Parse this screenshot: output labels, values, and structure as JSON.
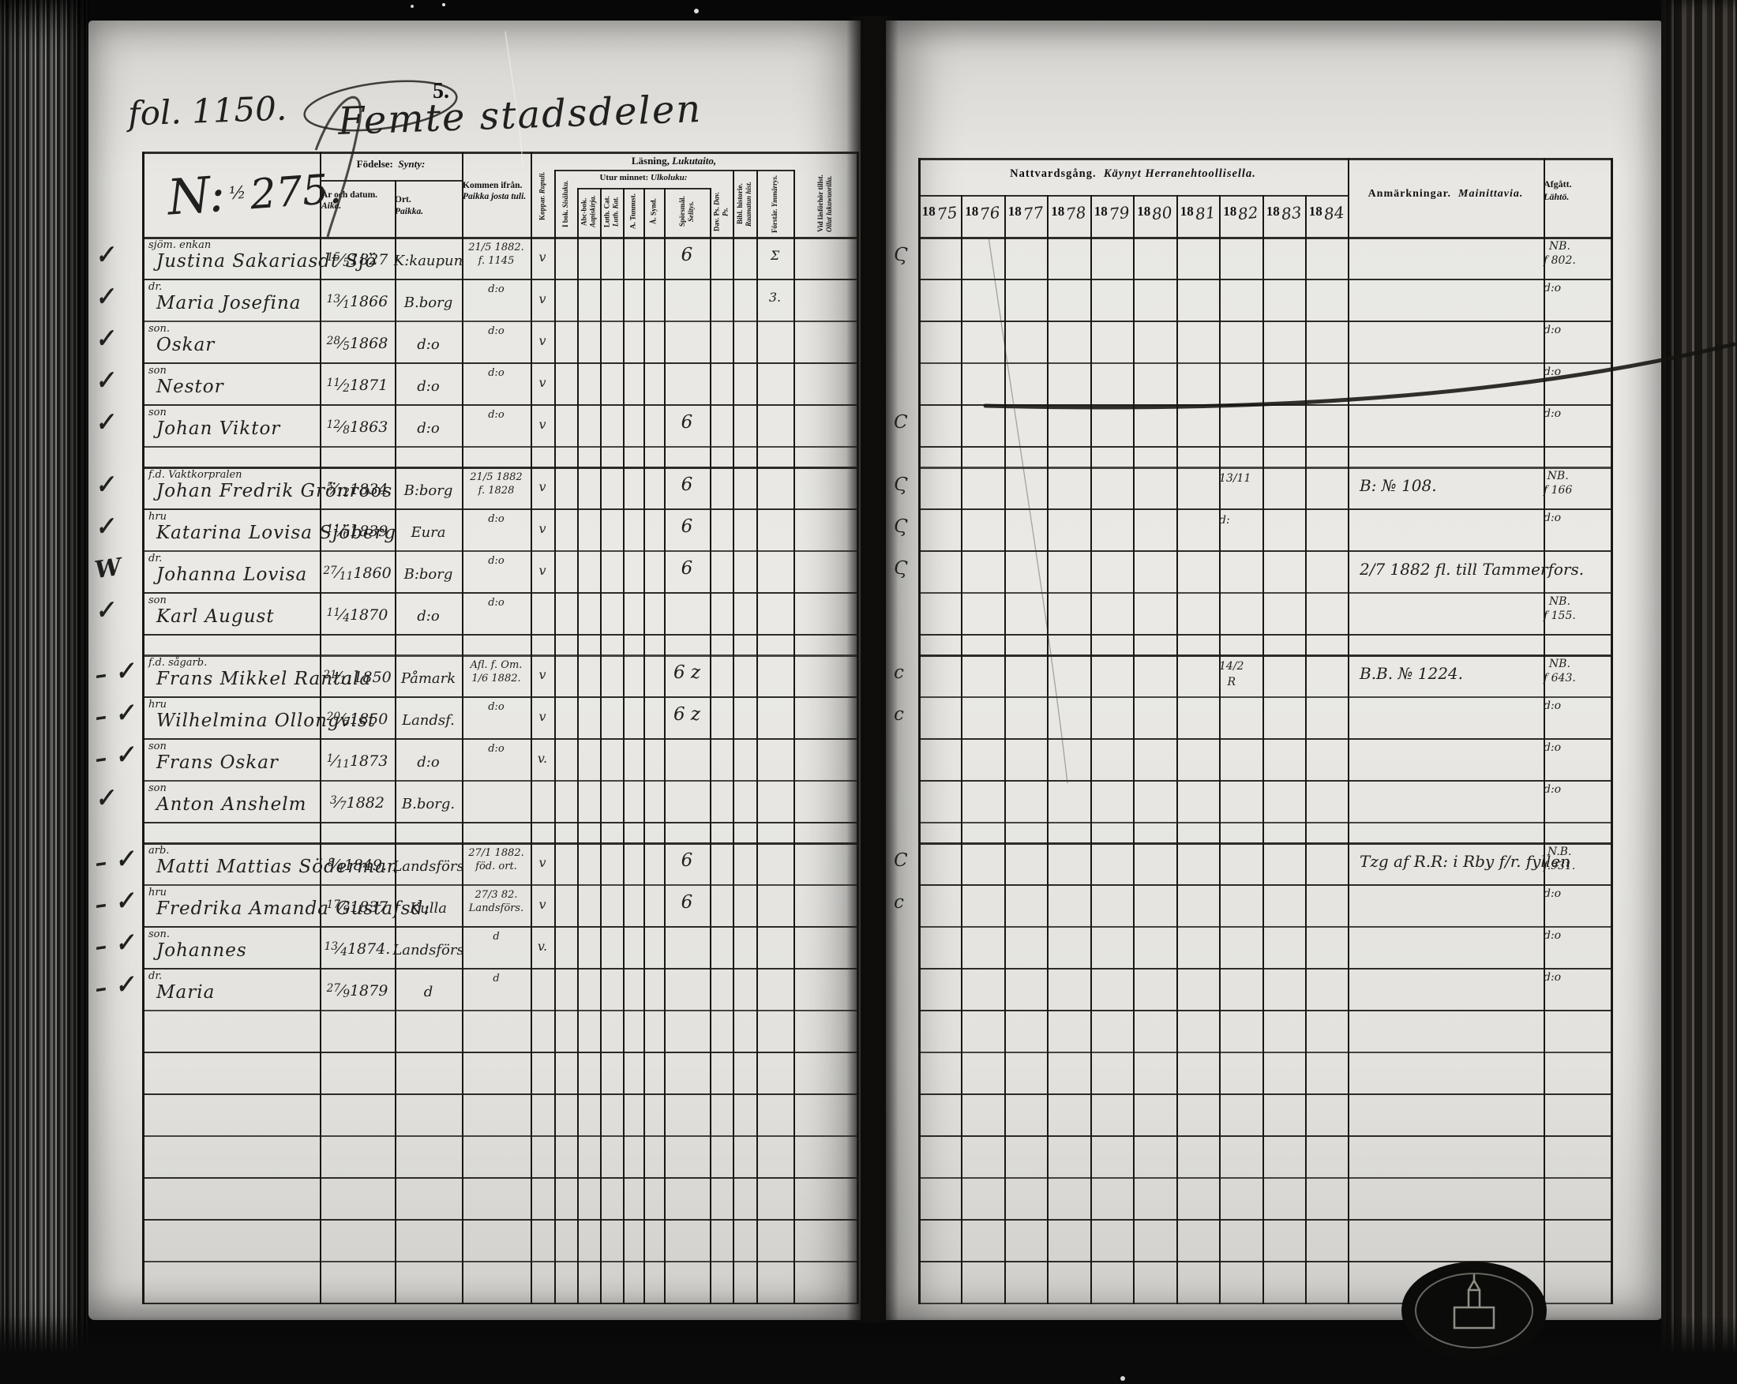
{
  "page": {
    "folio_label": "fol. 1150.",
    "district_title": "Femte stadsdelen",
    "page_number": "5.",
    "household_number_prefix": "N:",
    "household_number_fraction": "½",
    "household_number": "275."
  },
  "left_table": {
    "header": {
      "birth_group_sv": "Födelse:",
      "birth_group_fi": "Synty:",
      "birth_date_sv": "År och datum.",
      "birth_date_fi": "Aika.",
      "birth_place_sv": "Ort.",
      "birth_place_fi": "Paikka.",
      "came_from_sv": "Kommen ifrån.",
      "came_from_fi": "Paikka josta tuli.",
      "smallpox_sv": "Koppar.",
      "smallpox_fi": "Rupuli.",
      "reading_group_sv": "Läsning,",
      "reading_group_fi": "Lukutaito,",
      "memory_group_sv": "Utur minnet:",
      "memory_group_fi": "Ulkoluku:",
      "reading_cols": [
        {
          "sv": "I bok.",
          "fi": "Sisäluku."
        },
        {
          "sv": "Abc-bok.",
          "fi": "Aapiskirja."
        },
        {
          "sv": "Luth. Cat.",
          "fi": "Luth. Kat."
        },
        {
          "sv": "A. Tunnust.",
          "fi": ""
        },
        {
          "sv": "Å. Synd.",
          "fi": ""
        },
        {
          "sv": "Spörsmål.",
          "fi": "Selitys."
        },
        {
          "sv": "Dav. Ps.",
          "fi": "Dav. Ps."
        },
        {
          "sv": "Bibl. historie.",
          "fi": "Raamatun hist."
        },
        {
          "sv": "Förstår.",
          "fi": "Ymmärrys."
        },
        {
          "sv": "Vid läsförhör tillst.",
          "fi": "Ollut lukuwuorilla."
        }
      ]
    }
  },
  "right_table": {
    "header": {
      "communion_sv": "Nattvardsgång.",
      "communion_fi": "Käynyt Herranehtoollisella.",
      "year_prefix": "18",
      "year_suffixes": [
        "75",
        "76",
        "77",
        "78",
        "79",
        "80",
        "81",
        "82",
        "83",
        "84"
      ],
      "notes_sv": "Anmärkningar.",
      "notes_fi": "Mainittavia.",
      "departed_sv": "Afgått.",
      "departed_fi": "Lähtö."
    }
  },
  "rows": [
    {
      "type": "entry",
      "check": "✓",
      "occupation": "sjöm. enkan",
      "name": "Justina Sakariasdt Sjö",
      "birth_date": "15/5 1827",
      "birth_place": "K:kaupun",
      "came_from": "21/5 1882.\nf. 1145",
      "smallpox": "v",
      "sporsmal": "6",
      "forstar": "Σ",
      "comm_margin": "Ϛ",
      "departed": "NB.\nf 802."
    },
    {
      "type": "entry",
      "check": "✓",
      "occupation": "dr.",
      "name": "Maria Josefina",
      "birth_date": "13/1 1866",
      "birth_place": "B.borg",
      "came_from": "d:o",
      "smallpox": "v",
      "forstar": "3.",
      "departed": "d:o"
    },
    {
      "type": "entry",
      "check": "✓",
      "occupation": "son.",
      "name": "Oskar",
      "birth_date": "28/5 1868",
      "birth_place": "d:o",
      "came_from": "d:o",
      "smallpox": "v",
      "departed": "d:o"
    },
    {
      "type": "entry",
      "check": "✓",
      "occupation": "son",
      "name": "Nestor",
      "birth_date": "11/2 1871",
      "birth_place": "d:o",
      "came_from": "d:o",
      "smallpox": "v",
      "departed": "d:o"
    },
    {
      "type": "entry",
      "check": "✓",
      "occupation": "son",
      "name": "Johan Viktor",
      "birth_date": "12/8 1863",
      "birth_place": "d:o",
      "came_from": "d:o",
      "smallpox": "v",
      "sporsmal": "6",
      "comm_margin": "C",
      "departed": "d:o"
    },
    {
      "type": "gap"
    },
    {
      "type": "entry",
      "check": "✓",
      "occupation": "f.d. Vaktkorpralen",
      "name": "Johan Fredrik Grönroos",
      "birth_date": "5/12 1834",
      "birth_place": "B:borg",
      "came_from": "21/5 1882\nf. 1828",
      "smallpox": "v",
      "sporsmal": "6",
      "comm_margin": "Ϛ",
      "y1882": [
        "13/11"
      ],
      "note": "B: № 108.",
      "departed": "NB.\nf 166"
    },
    {
      "type": "entry",
      "check": "✓",
      "occupation": "hru",
      "name": "Katarina Lovisa Sjöberg",
      "birth_date": "11/6 1839",
      "birth_place": "Eura",
      "came_from": "d:o",
      "smallpox": "v",
      "sporsmal": "6",
      "comm_margin": "Ϛ",
      "y1882": [
        "d:"
      ],
      "departed": "d:o"
    },
    {
      "type": "entry",
      "check": "W",
      "occupation": "dr.",
      "name": "Johanna Lovisa",
      "birth_date": "27/11 1860",
      "birth_place": "B:borg",
      "came_from": "d:o",
      "smallpox": "v",
      "sporsmal": "6",
      "comm_margin": "Ϛ",
      "note": "2/7 1882 fl. till Tammerfors."
    },
    {
      "type": "entry",
      "check": "✓",
      "occupation": "son",
      "name": "Karl August",
      "birth_date": "11/4 1870",
      "birth_place": "d:o",
      "came_from": "d:o",
      "departed": "NB.\nf 155."
    },
    {
      "type": "gap"
    },
    {
      "type": "entry",
      "check": "– ✓",
      "occupation": "f.d. sågarb.",
      "name": "Frans Mikkel Rantala",
      "birth_date": "21/11 1850",
      "birth_place": "Påmark",
      "came_from": "Afl. f. Om.\n1/6 1882.",
      "smallpox": "v",
      "sporsmal": "6 z",
      "comm_margin": "c",
      "y1882": [
        "14/2",
        "R"
      ],
      "note": "B.B. № 1224.",
      "departed": "NB.\nf 643."
    },
    {
      "type": "entry",
      "check": "– ✓",
      "occupation": "hru",
      "name": "Wilhelmina Ollongvist",
      "birth_date": "20/5 1850",
      "birth_place": "Landsf.",
      "came_from": "d:o",
      "smallpox": "v",
      "sporsmal": "6 z",
      "comm_margin": "c",
      "departed": "d:o"
    },
    {
      "type": "entry",
      "check": "– ✓",
      "occupation": "son",
      "name": "Frans Oskar",
      "birth_date": "1/11 1873",
      "birth_place": "d:o",
      "came_from": "d:o",
      "smallpox": "v.",
      "departed": "d:o"
    },
    {
      "type": "entry",
      "check": "✓",
      "occupation": "son",
      "name": "Anton Anshelm",
      "birth_date": "3/7 1882",
      "birth_place": "B.borg.",
      "came_from": "",
      "departed": "d:o"
    },
    {
      "type": "gap"
    },
    {
      "type": "entry",
      "check": "– ✓",
      "occupation": "arb.",
      "name": "Matti Mattias Söderman",
      "birth_date": "8/4 1849.",
      "birth_place": "Landsförs",
      "came_from": "27/1 1882.\nföd. ort.",
      "smallpox": "v",
      "sporsmal": "6",
      "comm_margin": "C",
      "note": "Tzg af R.R: i Rby f/r. fyllen",
      "departed": "N.B.\nf.931."
    },
    {
      "type": "entry",
      "check": "– ✓",
      "occupation": "hru",
      "name": "Fredrika Amanda Gustafsd:",
      "birth_date": "17/9 1837",
      "birth_place": "Kulla",
      "came_from": "27/3 82.\nLandsförs.",
      "smallpox": "v",
      "sporsmal": "6",
      "comm_margin": "c",
      "departed": "d:o"
    },
    {
      "type": "entry",
      "check": "– ✓",
      "occupation": "son.",
      "name": "Johannes",
      "birth_date": "13/4 1874.",
      "birth_place": "Landsförs",
      "came_from": "d",
      "smallpox": "v.",
      "departed": "d:o"
    },
    {
      "type": "entry",
      "check": "– ✓",
      "occupation": "dr.",
      "name": "Maria",
      "birth_date": "27/9 1879",
      "birth_place": "d",
      "came_from": "d",
      "departed": "d:o"
    },
    {
      "type": "empty"
    },
    {
      "type": "empty"
    },
    {
      "type": "empty"
    },
    {
      "type": "empty"
    },
    {
      "type": "empty"
    },
    {
      "type": "empty"
    },
    {
      "type": "empty"
    }
  ]
}
